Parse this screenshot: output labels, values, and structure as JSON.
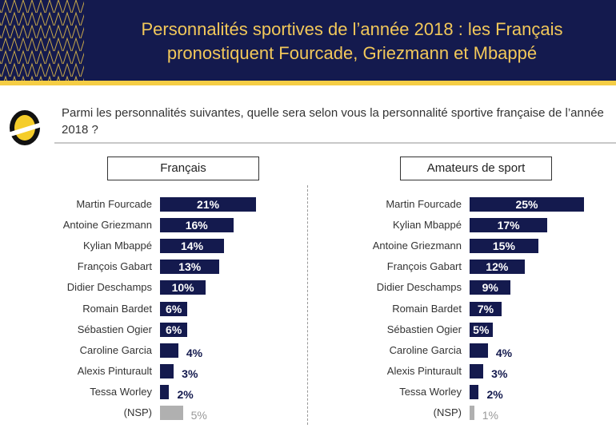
{
  "header": {
    "title_line1": "Personnalités sportives de l’année 2018 : les Français",
    "title_line2": "pronostiquent Fourcade, Griezmann et Mbappé"
  },
  "question": "Parmi les personnalités suivantes, quelle sera selon vous la personnalité sportive française de l’année 2018 ?",
  "colors": {
    "header_bg": "#141a4e",
    "accent": "#f5cd45",
    "bar": "#141a4e",
    "nsp": "#b0b0b0"
  },
  "chart_data": [
    {
      "type": "bar",
      "orientation": "horizontal",
      "title": "Français",
      "unit": "%",
      "categories": [
        "Martin Fourcade",
        "Antoine Griezmann",
        "Kylian Mbappé",
        "François Gabart",
        "Didier Deschamps",
        "Romain Bardet",
        "Sébastien Ogier",
        "Caroline Garcia",
        "Alexis Pinturault",
        "Tessa Worley",
        "(NSP)"
      ],
      "values": [
        21,
        16,
        14,
        13,
        10,
        6,
        6,
        4,
        3,
        2,
        5
      ]
    },
    {
      "type": "bar",
      "orientation": "horizontal",
      "title": "Amateurs de sport",
      "unit": "%",
      "categories": [
        "Martin Fourcade",
        "Kylian Mbappé",
        "Antoine Griezmann",
        "François Gabart",
        "Didier Deschamps",
        "Romain Bardet",
        "Sébastien Ogier",
        "Caroline Garcia",
        "Alexis Pinturault",
        "Tessa Worley",
        "(NSP)"
      ],
      "values": [
        25,
        17,
        15,
        12,
        9,
        7,
        5,
        4,
        3,
        2,
        1
      ]
    }
  ]
}
